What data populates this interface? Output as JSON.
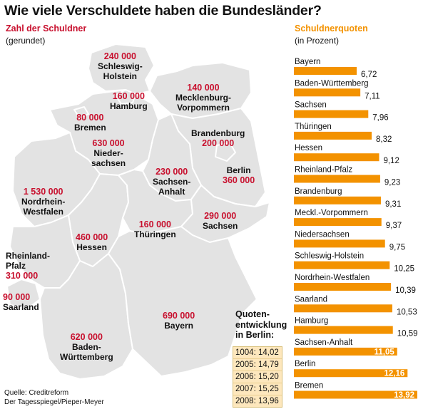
{
  "title": "Wie viele Verschuldete haben die Bundesländer?",
  "map": {
    "title": "Zahl der Schuldner",
    "subtitle": "(gerundet)",
    "states": [
      {
        "name": "Schleswig-\nHolstein",
        "value": "240 000"
      },
      {
        "name": "Hamburg",
        "value": "160 000"
      },
      {
        "name": "Bremen",
        "value": "80 000"
      },
      {
        "name": "Mecklenburg-\nVorpommern",
        "value": "140 000"
      },
      {
        "name": "Brandenburg",
        "value": "200 000"
      },
      {
        "name": "Berlin",
        "value": "360 000"
      },
      {
        "name": "Nieder-\nsachsen",
        "value": "630 000"
      },
      {
        "name": "Sachsen-\nAnhalt",
        "value": "230 000"
      },
      {
        "name": "Nordrhein-\nWestfalen",
        "value": "1 530 000"
      },
      {
        "name": "Hessen",
        "value": "460 000"
      },
      {
        "name": "Thüringen",
        "value": "160 000"
      },
      {
        "name": "Sachsen",
        "value": "290 000"
      },
      {
        "name": "Rheinland-\nPfalz",
        "value": "310 000"
      },
      {
        "name": "Saarland",
        "value": "90 000"
      },
      {
        "name": "Bayern",
        "value": "690 000"
      },
      {
        "name": "Baden-\nWürttemberg",
        "value": "620 000"
      }
    ]
  },
  "chart_data": {
    "type": "bar",
    "title": "Schuldnerquoten",
    "subtitle": "(in Prozent)",
    "categories": [
      "Bayern",
      "Baden-Württemberg",
      "Sachsen",
      "Thüringen",
      "Hessen",
      "Rheinland-Pfalz",
      "Brandenburg",
      "Meckl.-Vorpommern",
      "Niedersachsen",
      "Schleswig-Holstein",
      "Nordrhein-Westfalen",
      "Saarland",
      "Hamburg",
      "Sachsen-Anhalt",
      "Berlin",
      "Bremen"
    ],
    "values": [
      6.72,
      7.11,
      7.96,
      8.32,
      9.12,
      9.23,
      9.31,
      9.37,
      9.75,
      10.25,
      10.39,
      10.53,
      10.59,
      11.05,
      12.16,
      13.92
    ],
    "value_labels": [
      "6,72",
      "7,11",
      "7,96",
      "8,32",
      "9,12",
      "9,23",
      "9,31",
      "9,37",
      "9,75",
      "10,25",
      "10,39",
      "10,53",
      "10,59",
      "11,05",
      "12,16",
      "13,92"
    ],
    "bar_color": "#f39200"
  },
  "inset": {
    "title": "Quoten-\nentwicklung\nin Berlin:",
    "rows": [
      "1004: 14,02",
      "2005: 14,79",
      "2006: 15,20",
      "2007: 15,25",
      "2008: 13,96"
    ]
  },
  "source": {
    "line1": "Quelle: Creditreform",
    "line2": "Der Tagesspiegel/Pieper-Meyer"
  },
  "colors": {
    "map_fill": "#e3e3e3",
    "map_border": "#ffffff",
    "value_text": "#c8102e"
  }
}
